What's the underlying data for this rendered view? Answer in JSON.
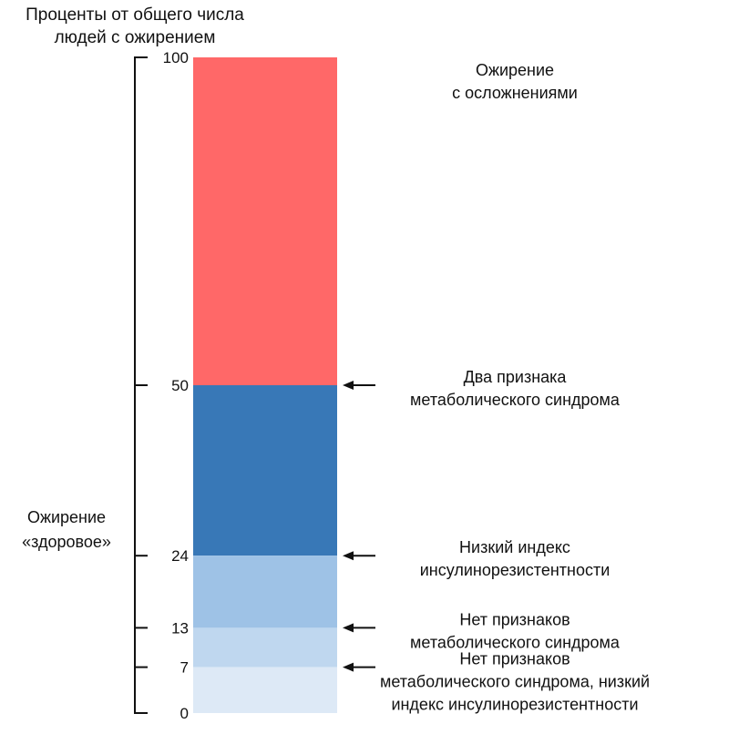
{
  "chart_data": {
    "type": "bar",
    "title_lines": [
      "Проценты от общего числа",
      "людей с ожирением"
    ],
    "y_ticks": [
      100,
      50,
      24,
      13,
      7,
      0
    ],
    "ylim": [
      0,
      100
    ],
    "segments": [
      {
        "from": 50,
        "to": 100,
        "color": "#ff6868"
      },
      {
        "from": 24,
        "to": 50,
        "color": "#3878b7"
      },
      {
        "from": 13,
        "to": 24,
        "color": "#9ec2e6"
      },
      {
        "from": 7,
        "to": 13,
        "color": "#bfd7ef"
      },
      {
        "from": 0,
        "to": 7,
        "color": "#dde9f6"
      }
    ],
    "group_label": {
      "lines": [
        "Ожирение",
        "«здоровое»"
      ],
      "range": [
        0,
        50
      ]
    },
    "annotations": [
      {
        "at": 100,
        "arrow": false,
        "lines": [
          "Ожирение",
          "с осложнениями"
        ]
      },
      {
        "at": 50,
        "arrow": true,
        "lines": [
          "Два признака",
          "метаболического синдрома"
        ]
      },
      {
        "at": 24,
        "arrow": true,
        "lines": [
          "Низкий индекс",
          "инсулинорезистентности"
        ]
      },
      {
        "at": 13,
        "arrow": true,
        "lines": [
          "Нет признаков",
          "метаболического синдрома"
        ]
      },
      {
        "at": 7,
        "arrow": true,
        "lines": [
          "Нет признаков",
          "метаболического синдрома, низкий",
          "индекс инсулинорезистентности"
        ]
      }
    ]
  }
}
